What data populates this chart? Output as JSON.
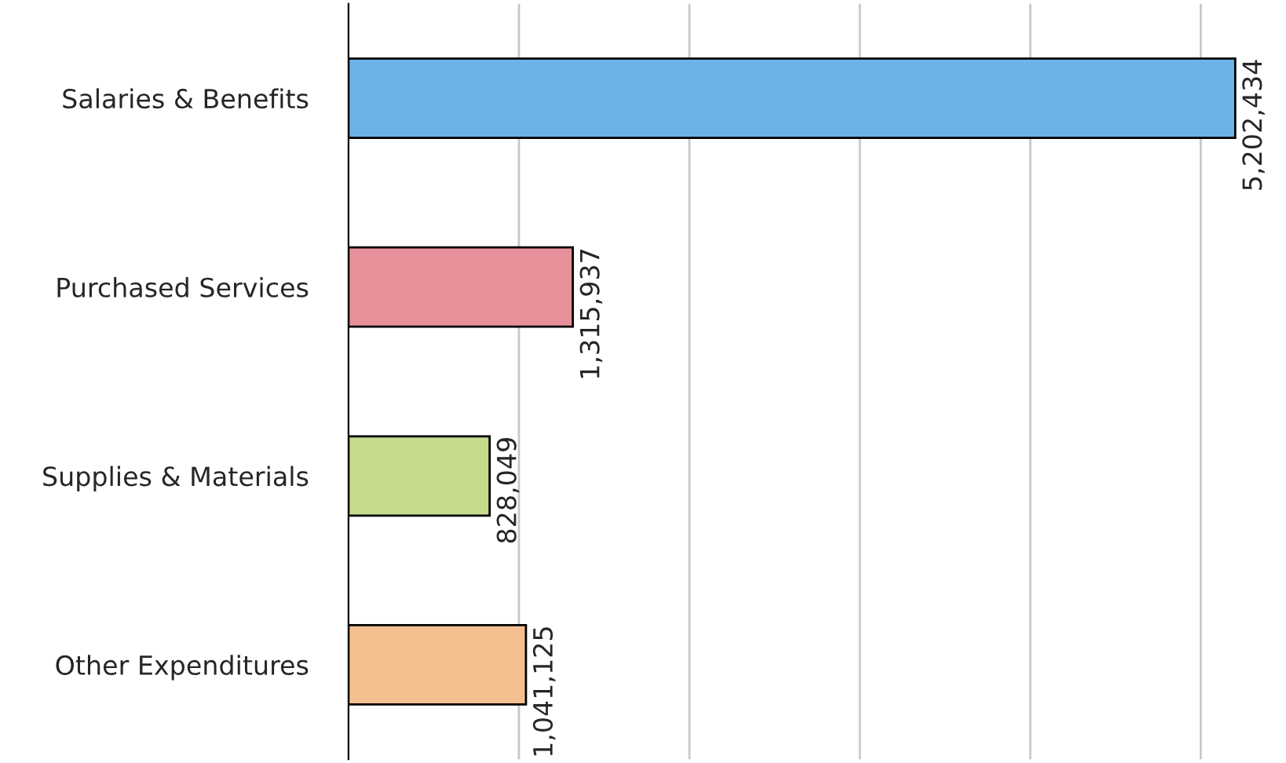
{
  "chart_data": {
    "type": "bar",
    "orientation": "horizontal",
    "categories": [
      "Salaries & Benefits",
      "Purchased Services",
      "Supplies & Materials",
      "Other Expenditures"
    ],
    "values": [
      5202434,
      1315937,
      828049,
      1041125
    ],
    "colors": [
      "#6cb4e8",
      "#e8909a",
      "#c4dc8c",
      "#f4c090"
    ],
    "value_labels": [
      "5,202,434",
      "1,315,937",
      "828,049",
      "1,041,125"
    ],
    "xticks": [
      {
        "value": 1000000,
        "label": null
      },
      {
        "value": 2000000,
        "label": null
      },
      {
        "value": 3000000,
        "label": null
      },
      {
        "value": 4000000,
        "label": null
      },
      {
        "value": 5000000,
        "label": null
      }
    ],
    "grid": "x",
    "tick_labels": "y"
  }
}
